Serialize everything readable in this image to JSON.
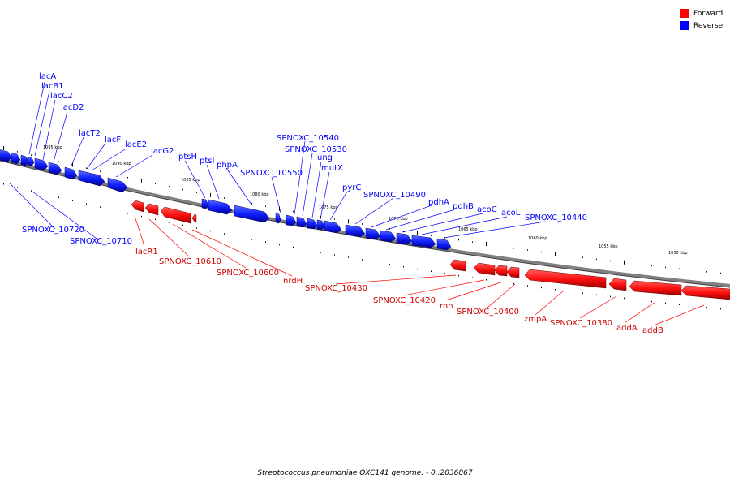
{
  "legend": {
    "forward_label": "Forward",
    "reverse_label": "Reverse",
    "forward_color": "#ff0000",
    "reverse_color": "#0000ff"
  },
  "caption": "Streptococcus pneumoniae OXC141 genome. - 0..2036867",
  "scale_labels": [
    "1095 kbp",
    "1090 kbp",
    "1085 kbp",
    "1080 kbp",
    "1075 kbp",
    "1070 kbp",
    "1065 kbp",
    "1060 kbp",
    "1055 kbp",
    "1050 kbp"
  ],
  "reverse_genes": [
    "lacA",
    "lacB1",
    "lacC2",
    "lacD2",
    "lacT2",
    "lacF",
    "lacE2",
    "lacG2",
    "ptsH",
    "ptsI",
    "phpA",
    "SPNOXC_10550",
    "SPNOXC_10540",
    "SPNOXC_10530",
    "ung",
    "mutX",
    "pyrC",
    "SPNOXC_10490",
    "pdhA",
    "pdhB",
    "acoC",
    "acoL",
    "SPNOXC_10440",
    "SPNOXC_10720",
    "SPNOXC_10710"
  ],
  "forward_genes": [
    "lacR1",
    "SPNOXC_10610",
    "SPNOXC_10600",
    "nrdH",
    "SPNOXC_10430",
    "SPNOXC_10420",
    "rnh",
    "SPNOXC_10400",
    "zmpA",
    "SPNOXC_10380",
    "addA",
    "addB"
  ]
}
